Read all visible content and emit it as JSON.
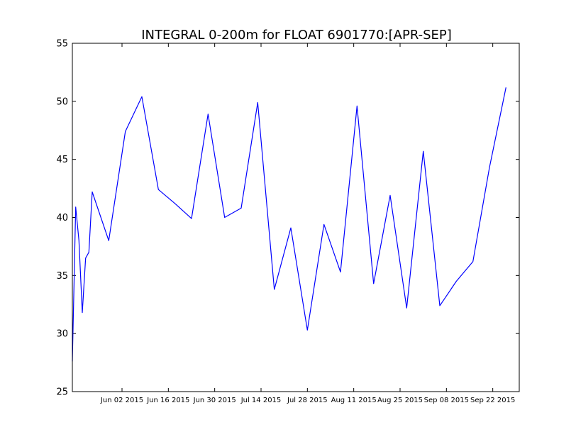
{
  "chart_data": {
    "type": "line",
    "title": "INTEGRAL 0-200m for FLOAT 6901770:[APR-SEP]",
    "xlabel": "",
    "ylabel": "",
    "ylim": [
      25,
      55
    ],
    "xlim": [
      "2015-05-18",
      "2015-09-30"
    ],
    "yticks": [
      25,
      30,
      35,
      40,
      45,
      50,
      55
    ],
    "xticks": [
      {
        "date": "2015-06-02",
        "label": "Jun 02 2015"
      },
      {
        "date": "2015-06-16",
        "label": "Jun 16 2015"
      },
      {
        "date": "2015-06-30",
        "label": "Jun 30 2015"
      },
      {
        "date": "2015-07-14",
        "label": "Jul 14 2015"
      },
      {
        "date": "2015-07-28",
        "label": "Jul 28 2015"
      },
      {
        "date": "2015-08-11",
        "label": "Aug 11 2015"
      },
      {
        "date": "2015-08-25",
        "label": "Aug 25 2015"
      },
      {
        "date": "2015-09-08",
        "label": "Sep 08 2015"
      },
      {
        "date": "2015-09-22",
        "label": "Sep 22 2015"
      }
    ],
    "grid": false,
    "legend": "none",
    "series": [
      {
        "color": "#0000ff",
        "points": [
          {
            "x": "2015-05-18",
            "y": 27.6
          },
          {
            "x": "2015-05-19",
            "y": 40.9
          },
          {
            "x": "2015-05-20",
            "y": 38.0
          },
          {
            "x": "2015-05-21",
            "y": 31.8
          },
          {
            "x": "2015-05-22",
            "y": 36.5
          },
          {
            "x": "2015-05-23",
            "y": 37.0
          },
          {
            "x": "2015-05-24",
            "y": 42.2
          },
          {
            "x": "2015-05-29",
            "y": 38.0
          },
          {
            "x": "2015-06-03",
            "y": 47.4
          },
          {
            "x": "2015-06-08",
            "y": 50.4
          },
          {
            "x": "2015-06-13",
            "y": 42.4
          },
          {
            "x": "2015-06-18",
            "y": 41.2
          },
          {
            "x": "2015-06-23",
            "y": 39.9
          },
          {
            "x": "2015-06-28",
            "y": 48.9
          },
          {
            "x": "2015-07-03",
            "y": 40.0
          },
          {
            "x": "2015-07-08",
            "y": 40.8
          },
          {
            "x": "2015-07-13",
            "y": 49.9
          },
          {
            "x": "2015-07-18",
            "y": 33.8
          },
          {
            "x": "2015-07-23",
            "y": 39.1
          },
          {
            "x": "2015-07-28",
            "y": 30.3
          },
          {
            "x": "2015-08-02",
            "y": 39.4
          },
          {
            "x": "2015-08-07",
            "y": 35.3
          },
          {
            "x": "2015-08-12",
            "y": 49.6
          },
          {
            "x": "2015-08-17",
            "y": 34.3
          },
          {
            "x": "2015-08-22",
            "y": 41.9
          },
          {
            "x": "2015-08-27",
            "y": 32.2
          },
          {
            "x": "2015-09-01",
            "y": 45.7
          },
          {
            "x": "2015-09-06",
            "y": 32.4
          },
          {
            "x": "2015-09-11",
            "y": 34.5
          },
          {
            "x": "2015-09-16",
            "y": 36.2
          },
          {
            "x": "2015-09-21",
            "y": 44.3
          },
          {
            "x": "2015-09-26",
            "y": 51.2
          }
        ]
      }
    ]
  }
}
